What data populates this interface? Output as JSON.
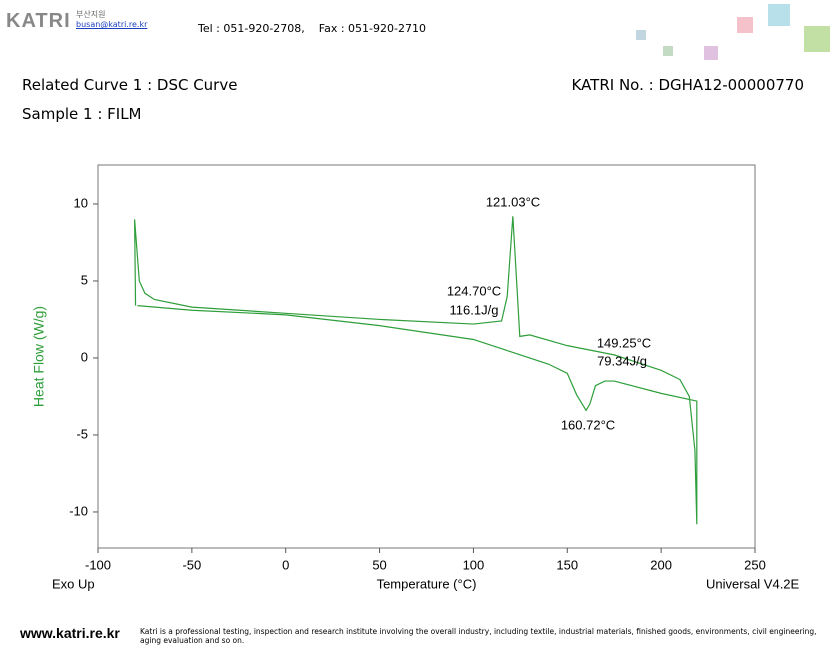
{
  "header": {
    "logo": "KATRI",
    "branch": "부산지원",
    "email": "busan@katri.re.kr",
    "contact": "Tel : 051-920-2708,    Fax : 051-920-2710"
  },
  "title_left": "Related Curve 1 : DSC Curve",
  "title_right": "KATRI No. : DGHA12-00000770",
  "sample": "Sample 1 : FILM",
  "chart_data": {
    "type": "line",
    "x_label": "Temperature (°C)",
    "y_label": "Heat Flow (W/g)",
    "exo_label": "Exo Up",
    "software_label": "Universal V4.2E",
    "xlim": [
      -100,
      250
    ],
    "ylim": [
      -12.34,
      12.53
    ],
    "xticks": [
      -100,
      -50,
      0,
      50,
      100,
      150,
      200,
      250
    ],
    "yticks": [
      -10,
      -5,
      0,
      5,
      10
    ],
    "x": [
      -80,
      -80.5,
      -78,
      -75,
      -70,
      -50,
      0,
      50,
      100,
      115,
      118,
      121,
      123,
      124.7,
      130,
      150,
      175,
      200,
      210,
      215,
      218,
      219,
      219,
      200,
      175,
      170,
      165,
      162,
      160,
      155,
      150,
      140,
      120,
      100,
      50,
      0,
      -50,
      -79
    ],
    "series": [
      {
        "color": "#2e9e3a",
        "values": [
          3.4,
          9,
          5,
          4.2,
          3.8,
          3.3,
          2.9,
          2.5,
          2.2,
          2.4,
          4,
          9.2,
          5,
          1.4,
          1.5,
          0.8,
          0.2,
          -0.8,
          -1.4,
          -2.5,
          -6,
          -10.8,
          -2.8,
          -2.3,
          -1.5,
          -1.5,
          -1.8,
          -3,
          -3.4,
          -2.4,
          -1,
          -0.4,
          0.4,
          1.2,
          2.1,
          2.8,
          3.1,
          3.4
        ]
      }
    ],
    "annotations": [
      "121.03°C",
      "124.70°C",
      "116.1J/g",
      "149.25°C",
      "79.34J/g",
      "160.72°C"
    ]
  },
  "footer": {
    "site": "www.katri.re.kr",
    "text": "Katri is a professional testing, inspection and research institute involving the overall industry, including textile, industrial materials, finished goods, environments, civil engineering, aging evaluation and so on."
  }
}
